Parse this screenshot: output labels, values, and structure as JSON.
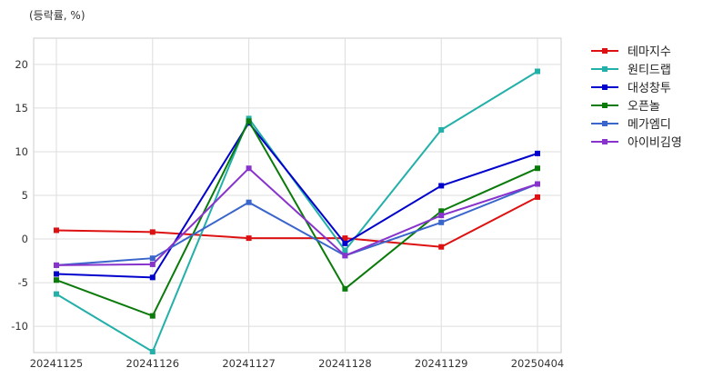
{
  "chart_data": {
    "type": "line",
    "unit_label": "(등락률, %)",
    "x": [
      "20241125",
      "20241126",
      "20241127",
      "20241128",
      "20241129",
      "20250404"
    ],
    "ylim": [
      -13,
      23
    ],
    "yticks": [
      -10,
      -5,
      0,
      5,
      10,
      15,
      20
    ],
    "grid": true,
    "legend_position": "right",
    "series": [
      {
        "name": "테마지수",
        "color": "#dd1111",
        "values": [
          1.0,
          0.8,
          0.1,
          0.1,
          -0.9,
          4.8
        ]
      },
      {
        "name": "원티드랩",
        "color": "#22b0a8",
        "values": [
          -6.3,
          -12.9,
          13.8,
          -1.3,
          12.5,
          19.2
        ]
      },
      {
        "name": "대성창투",
        "color": "#0000cc",
        "values": [
          -4.0,
          -4.4,
          13.3,
          -0.5,
          6.1,
          9.8
        ]
      },
      {
        "name": "오픈놀",
        "color": "#0a7a0a",
        "values": [
          -4.7,
          -8.8,
          13.5,
          -5.7,
          3.2,
          8.1
        ]
      },
      {
        "name": "메가엠디",
        "color": "#3a66cc",
        "values": [
          -3.0,
          -2.2,
          4.2,
          -1.9,
          1.9,
          6.3
        ]
      },
      {
        "name": "아이비김영",
        "color": "#8833cc",
        "values": [
          -3.0,
          -2.9,
          8.1,
          -1.9,
          2.7,
          6.3
        ]
      }
    ]
  }
}
